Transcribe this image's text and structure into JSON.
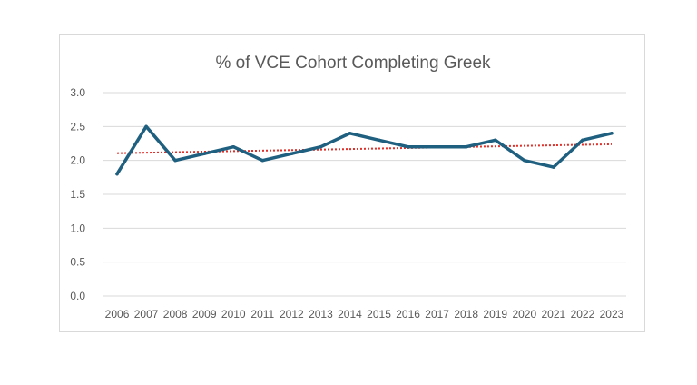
{
  "chart_data": {
    "type": "line",
    "title": "% of VCE Cohort Completing Greek",
    "xlabel": "",
    "ylabel": "",
    "x": [
      "2006",
      "2007",
      "2008",
      "2009",
      "2010",
      "2011",
      "2012",
      "2013",
      "2014",
      "2015",
      "2016",
      "2017",
      "2018",
      "2019",
      "2020",
      "2021",
      "2022",
      "2023"
    ],
    "series": [
      {
        "values": [
          1.8,
          2.5,
          2.0,
          2.1,
          2.2,
          2.0,
          2.1,
          2.2,
          2.4,
          2.3,
          2.2,
          2.2,
          2.2,
          2.3,
          2.0,
          1.9,
          2.3,
          2.4
        ],
        "color": "#1f5f7f"
      }
    ],
    "trendline": {
      "type": "linear",
      "color": "#e0302a",
      "style": "dotted"
    },
    "ylim": [
      0,
      3.0
    ],
    "yticks": [
      "0.0",
      "0.5",
      "1.0",
      "1.5",
      "2.0",
      "2.5",
      "3.0"
    ],
    "grid": true,
    "gridline_color": "#d9d9d9",
    "legend": "none"
  }
}
